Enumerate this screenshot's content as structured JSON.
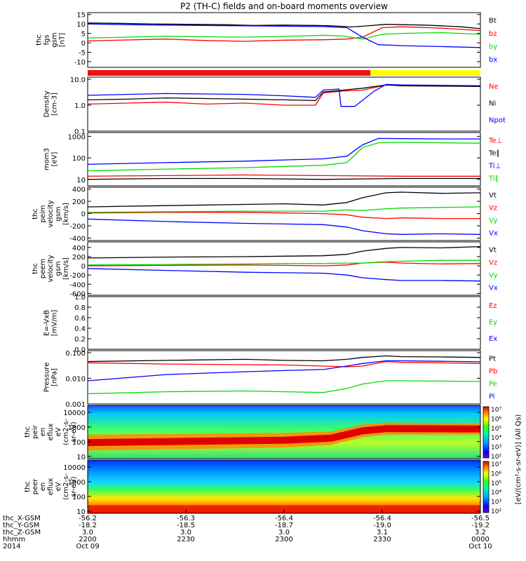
{
  "title": "P2 (TH-C) fields and on-board moments overview",
  "colors": {
    "black": "#000000",
    "red": "#ff0000",
    "green": "#00dd00",
    "blue": "#0000ff",
    "bar_red": "#ee1111",
    "bar_yellow": "#ffff00"
  },
  "chart_data": [
    {
      "type": "line",
      "id": "fgs",
      "ylabel": [
        "thc",
        "fgs",
        "gsm",
        "[nT]"
      ],
      "yticks": [
        "15",
        "10",
        "5",
        "0",
        "-5",
        "-10"
      ],
      "ylim": [
        -13,
        16
      ],
      "series": [
        {
          "name": "Bt",
          "color": "black",
          "x": [
            0,
            0.08,
            0.16,
            0.25,
            0.35,
            0.42,
            0.5,
            0.58,
            0.62,
            0.67,
            0.7,
            0.76,
            0.8,
            0.86,
            0.9,
            0.95,
            1
          ],
          "y": [
            10.5,
            10.3,
            10,
            9.8,
            9.6,
            9.2,
            9.4,
            9.2,
            9.0,
            8.4,
            8.8,
            9.8,
            9.6,
            9.4,
            9.0,
            8.5,
            7.5
          ]
        },
        {
          "name": "bz",
          "color": "red",
          "x": [
            0,
            0.1,
            0.2,
            0.3,
            0.4,
            0.5,
            0.6,
            0.66,
            0.7,
            0.75,
            0.8,
            0.9,
            1
          ],
          "y": [
            1,
            1.5,
            2,
            1.2,
            0.8,
            1.4,
            1.6,
            2,
            3,
            8,
            8.5,
            7.8,
            6.5
          ]
        },
        {
          "name": "by",
          "color": "green",
          "x": [
            0,
            0.1,
            0.2,
            0.3,
            0.4,
            0.5,
            0.6,
            0.65,
            0.7,
            0.75,
            0.8,
            0.9,
            1
          ],
          "y": [
            2.5,
            3,
            3.5,
            3.2,
            3.0,
            3.4,
            4,
            3.6,
            2,
            4.5,
            5,
            5.4,
            4.5
          ]
        },
        {
          "name": "bx",
          "color": "blue",
          "x": [
            0,
            0.1,
            0.2,
            0.3,
            0.4,
            0.5,
            0.6,
            0.66,
            0.7,
            0.74,
            0.8,
            0.9,
            1
          ],
          "y": [
            10,
            9.6,
            9.4,
            9.2,
            9.0,
            8.8,
            8.6,
            8,
            3,
            -1,
            -1.5,
            -2,
            -2.5
          ]
        }
      ]
    },
    {
      "type": "mode-bar",
      "id": "mode",
      "segments": [
        {
          "from": 0,
          "to": 0.72,
          "color": "bar_red"
        },
        {
          "from": 0.72,
          "to": 1,
          "color": "bar_yellow"
        }
      ]
    },
    {
      "type": "line",
      "id": "density",
      "log": true,
      "ylabel": [
        "Density",
        "[cm-3]"
      ],
      "yticks": [
        "10.0",
        "1.0",
        "0.1"
      ],
      "ylim": [
        0.1,
        12
      ],
      "series": [
        {
          "name": "Ne",
          "color": "red",
          "x": [
            0,
            0.1,
            0.2,
            0.3,
            0.4,
            0.5,
            0.58,
            0.6,
            0.65,
            0.7,
            0.76,
            0.8,
            0.9,
            1
          ],
          "y": [
            1.1,
            1.2,
            1.3,
            1.1,
            1.2,
            1.0,
            1.0,
            3,
            3.5,
            3.8,
            6,
            5.8,
            5.5,
            5.3
          ]
        },
        {
          "name": "Ni",
          "color": "black",
          "x": [
            0,
            0.1,
            0.2,
            0.3,
            0.4,
            0.5,
            0.58,
            0.6,
            0.65,
            0.7,
            0.76,
            0.8,
            0.9,
            1
          ],
          "y": [
            1.6,
            1.7,
            1.9,
            1.8,
            1.7,
            1.6,
            1.5,
            3.2,
            3.8,
            4.5,
            6,
            5.6,
            5.4,
            5.2
          ]
        },
        {
          "name": "Npot",
          "color": "blue",
          "x": [
            0,
            0.1,
            0.2,
            0.3,
            0.4,
            0.5,
            0.58,
            0.6,
            0.64,
            0.645,
            0.68,
            0.73,
            0.76,
            0.8,
            0.9,
            1
          ],
          "y": [
            2.4,
            2.6,
            2.8,
            2.7,
            2.6,
            2.3,
            2.0,
            3.8,
            4.2,
            0.9,
            0.9,
            3.5,
            6.3,
            6,
            5.8,
            5.6
          ]
        }
      ]
    },
    {
      "type": "line",
      "id": "mom",
      "log": true,
      "ylabel": [
        "mom3",
        "[eV]"
      ],
      "yticks": [
        "1000",
        "100",
        "10"
      ],
      "ylim": [
        5,
        1500
      ],
      "series": [
        {
          "name": "Te⊥",
          "color": "red",
          "x": [
            0,
            0.2,
            0.4,
            0.6,
            0.8,
            1
          ],
          "y": [
            14,
            15,
            16,
            15,
            14,
            14
          ]
        },
        {
          "name": "Te∥",
          "color": "black",
          "x": [
            0,
            0.2,
            0.4,
            0.6,
            0.8,
            1
          ],
          "y": [
            10,
            11,
            11,
            10,
            11,
            11
          ]
        },
        {
          "name": "Ti⊥",
          "color": "blue",
          "x": [
            0,
            0.2,
            0.4,
            0.5,
            0.6,
            0.66,
            0.7,
            0.74,
            0.8,
            0.9,
            1
          ],
          "y": [
            50,
            60,
            70,
            80,
            90,
            120,
            400,
            800,
            780,
            760,
            760
          ]
        },
        {
          "name": "Ti∥",
          "color": "green",
          "x": [
            0,
            0.2,
            0.4,
            0.5,
            0.6,
            0.66,
            0.7,
            0.74,
            0.8,
            0.9,
            1
          ],
          "y": [
            25,
            30,
            35,
            40,
            45,
            60,
            300,
            500,
            520,
            500,
            480
          ]
        }
      ]
    },
    {
      "type": "line",
      "id": "peim",
      "ylabel": [
        "thc",
        "peim",
        "velocity",
        "gsm",
        "[km/s]"
      ],
      "yticks": [
        "400",
        "200",
        "0",
        "-200",
        "-400"
      ],
      "ylim": [
        -440,
        430
      ],
      "series": [
        {
          "name": "Vt",
          "color": "black",
          "x": [
            0,
            0.2,
            0.4,
            0.5,
            0.6,
            0.66,
            0.7,
            0.76,
            0.8,
            0.9,
            1
          ],
          "y": [
            110,
            130,
            150,
            160,
            140,
            180,
            260,
            340,
            350,
            330,
            340
          ]
        },
        {
          "name": "Vz",
          "color": "red",
          "x": [
            0,
            0.2,
            0.4,
            0.5,
            0.6,
            0.66,
            0.7,
            0.76,
            0.8,
            0.9,
            1
          ],
          "y": [
            10,
            20,
            20,
            10,
            0,
            -20,
            -60,
            -80,
            -70,
            -80,
            -80
          ]
        },
        {
          "name": "Vy",
          "color": "green",
          "x": [
            0,
            0.2,
            0.4,
            0.5,
            0.6,
            0.66,
            0.7,
            0.76,
            0.8,
            0.9,
            1
          ],
          "y": [
            20,
            30,
            40,
            40,
            40,
            60,
            50,
            80,
            90,
            100,
            110
          ]
        },
        {
          "name": "Vx",
          "color": "blue",
          "x": [
            0,
            0.2,
            0.4,
            0.5,
            0.6,
            0.66,
            0.7,
            0.76,
            0.8,
            0.9,
            1
          ],
          "y": [
            -90,
            -130,
            -160,
            -170,
            -180,
            -220,
            -280,
            -330,
            -340,
            -330,
            -340
          ]
        }
      ]
    },
    {
      "type": "line",
      "id": "peem",
      "ylabel": [
        "thc",
        "peem",
        "velocity",
        "gsm",
        "[km/s]"
      ],
      "yticks": [
        "400",
        "200",
        "0",
        "-200",
        "-400",
        "-600"
      ],
      "ylim": [
        -640,
        520
      ],
      "series": [
        {
          "name": "Vt",
          "color": "black",
          "x": [
            0,
            0.2,
            0.4,
            0.5,
            0.6,
            0.66,
            0.7,
            0.76,
            0.8,
            0.9,
            1
          ],
          "y": [
            170,
            190,
            200,
            210,
            220,
            250,
            320,
            380,
            400,
            390,
            420
          ]
        },
        {
          "name": "Vz",
          "color": "red",
          "x": [
            0,
            0.2,
            0.4,
            0.5,
            0.6,
            0.66,
            0.7,
            0.76,
            0.8,
            0.9,
            1
          ],
          "y": [
            0,
            10,
            20,
            10,
            0,
            20,
            60,
            80,
            60,
            40,
            50
          ]
        },
        {
          "name": "Vy",
          "color": "green",
          "x": [
            0,
            0.2,
            0.4,
            0.5,
            0.6,
            0.66,
            0.7,
            0.76,
            0.8,
            0.9,
            1
          ],
          "y": [
            20,
            30,
            40,
            50,
            50,
            60,
            60,
            90,
            100,
            120,
            120
          ]
        },
        {
          "name": "Vx",
          "color": "blue",
          "x": [
            0,
            0.2,
            0.4,
            0.5,
            0.6,
            0.66,
            0.7,
            0.76,
            0.8,
            0.9,
            1
          ],
          "y": [
            -60,
            -100,
            -140,
            -150,
            -160,
            -200,
            -260,
            -300,
            -320,
            -320,
            -330
          ]
        }
      ]
    },
    {
      "type": "line",
      "id": "efield",
      "ylabel": [
        "E=-VxB",
        "[mV/m]"
      ],
      "yticks": [
        "1.0",
        "0.8",
        "0.6",
        "0.4",
        "0.2",
        "0.0"
      ],
      "ylim": [
        0,
        1
      ],
      "series": [
        {
          "name": "Ez",
          "color": "red",
          "x": [],
          "y": []
        },
        {
          "name": "Ey",
          "color": "green",
          "x": [],
          "y": []
        },
        {
          "name": "Ex",
          "color": "blue",
          "x": [],
          "y": []
        }
      ]
    },
    {
      "type": "line",
      "id": "pressure",
      "log": true,
      "ylabel": [
        "Pressure",
        "[nPa]"
      ],
      "yticks": [
        "0.100",
        "0.010",
        "0.001"
      ],
      "ylim": [
        0.001,
        0.12
      ],
      "series": [
        {
          "name": "Pt",
          "color": "black",
          "x": [
            0,
            0.2,
            0.4,
            0.5,
            0.6,
            0.66,
            0.7,
            0.76,
            0.8,
            0.9,
            1
          ],
          "y": [
            0.045,
            0.05,
            0.055,
            0.05,
            0.048,
            0.055,
            0.065,
            0.075,
            0.07,
            0.068,
            0.065
          ]
        },
        {
          "name": "Pb",
          "color": "red",
          "x": [
            0,
            0.2,
            0.4,
            0.5,
            0.6,
            0.66,
            0.7,
            0.76,
            0.8,
            0.9,
            1
          ],
          "y": [
            0.04,
            0.036,
            0.034,
            0.033,
            0.03,
            0.028,
            0.03,
            0.045,
            0.042,
            0.04,
            0.038
          ]
        },
        {
          "name": "Pe",
          "color": "green",
          "x": [
            0,
            0.2,
            0.4,
            0.5,
            0.6,
            0.66,
            0.7,
            0.76,
            0.8,
            0.9,
            1
          ],
          "y": [
            0.0025,
            0.003,
            0.0032,
            0.003,
            0.0028,
            0.004,
            0.006,
            0.008,
            0.008,
            0.0078,
            0.0075
          ]
        },
        {
          "name": "Pi",
          "color": "blue",
          "x": [
            0,
            0.2,
            0.4,
            0.5,
            0.6,
            0.66,
            0.7,
            0.76,
            0.8,
            0.9,
            1
          ],
          "y": [
            0.008,
            0.014,
            0.018,
            0.02,
            0.022,
            0.03,
            0.038,
            0.048,
            0.048,
            0.046,
            0.044
          ]
        }
      ]
    },
    {
      "type": "heatmap",
      "id": "peir",
      "ylabel": [
        "thc",
        "peir",
        "en",
        "eflux",
        "eV",
        "(cm2-s-",
        "sr-eV)"
      ],
      "yticks": [
        "10000",
        "1000",
        "100",
        "10"
      ],
      "ylim": [
        7,
        30000
      ],
      "log": true,
      "peak_band": [
        {
          "x": 0,
          "lo": 25,
          "hi": 300
        },
        {
          "x": 0.5,
          "lo": 40,
          "hi": 400
        },
        {
          "x": 0.62,
          "lo": 60,
          "hi": 500
        },
        {
          "x": 0.7,
          "lo": 200,
          "hi": 1500
        },
        {
          "x": 0.76,
          "lo": 300,
          "hi": 2000
        },
        {
          "x": 1,
          "lo": 300,
          "hi": 1800
        }
      ]
    },
    {
      "type": "heatmap",
      "id": "peer",
      "ylabel": [
        "thc",
        "peer",
        "en",
        "eflux",
        "eV",
        "(cm2-s-",
        "sr-eV)"
      ],
      "yticks": [
        "10000",
        "1000",
        "100",
        "10"
      ],
      "ylim": [
        7,
        30000
      ],
      "log": true,
      "peak_band": [
        {
          "x": 0,
          "lo": 7,
          "hi": 25
        },
        {
          "x": 1,
          "lo": 7,
          "hi": 25
        }
      ]
    }
  ],
  "legend_labels": {
    "fgs": [
      "Bt",
      "bz",
      "by",
      "bx"
    ],
    "density": [
      "Ne",
      "Ni",
      "Npot"
    ],
    "mom": [
      "Te⊥",
      "Te∥",
      "Ti⊥",
      "Ti∥"
    ],
    "peim": [
      "Vt",
      "Vz",
      "Vy",
      "Vx"
    ],
    "peem": [
      "Vt",
      "Vz",
      "Vy",
      "Vx"
    ],
    "efield": [
      "Ez",
      "Ey",
      "Ex"
    ],
    "pressure": [
      "Pt",
      "Pb",
      "Pe",
      "Pi"
    ]
  },
  "colorbar": {
    "labels": [
      "10⁷",
      "10⁶",
      "10⁵",
      "10⁴",
      "10³",
      "10²"
    ],
    "title": "[eV/(cm²-s-sr-eV)] (All Qs)"
  },
  "xaxis": {
    "row_labels": [
      "thc_X-GSM",
      "thc_Y-GSM",
      "thc_Z-GSM",
      "hhmm",
      "2014"
    ],
    "columns": [
      {
        "rows": [
          "-56.2",
          "-18.2",
          "3.0",
          "2200",
          "Oct 09"
        ]
      },
      {
        "rows": [
          "-56.3",
          "-18.5",
          "3.0",
          "2230",
          ""
        ]
      },
      {
        "rows": [
          "-56.4",
          "-18.7",
          "3.0",
          "2300",
          ""
        ]
      },
      {
        "rows": [
          "-56.4",
          "-19.0",
          "3.1",
          "2330",
          ""
        ]
      },
      {
        "rows": [
          "-56.5",
          "-19.2",
          "3.2",
          "0000",
          "Oct 10"
        ]
      }
    ]
  }
}
